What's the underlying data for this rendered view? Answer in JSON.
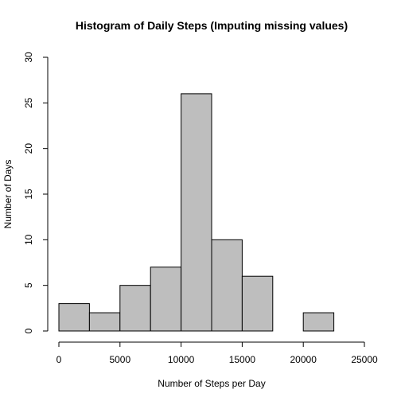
{
  "chart_data": {
    "type": "bar",
    "title": "Histogram of Daily Steps (Imputing missing values)",
    "xlabel": "Number of Steps per Day",
    "ylabel": "Number of Days",
    "bins": [
      {
        "start": 0,
        "end": 2500,
        "count": 3
      },
      {
        "start": 2500,
        "end": 5000,
        "count": 2
      },
      {
        "start": 5000,
        "end": 7500,
        "count": 5
      },
      {
        "start": 7500,
        "end": 10000,
        "count": 7
      },
      {
        "start": 10000,
        "end": 12500,
        "count": 26
      },
      {
        "start": 12500,
        "end": 15000,
        "count": 10
      },
      {
        "start": 15000,
        "end": 17500,
        "count": 6
      },
      {
        "start": 17500,
        "end": 20000,
        "count": 0
      },
      {
        "start": 20000,
        "end": 22500,
        "count": 2
      },
      {
        "start": 22500,
        "end": 25000,
        "count": 0
      }
    ],
    "xlim": [
      0,
      25000
    ],
    "ylim": [
      0,
      30
    ],
    "x_ticks": [
      "0",
      "5000",
      "10000",
      "15000",
      "20000",
      "25000"
    ],
    "y_ticks": [
      "0",
      "5",
      "10",
      "15",
      "20",
      "25",
      "30"
    ],
    "bar_color": "#bebebe",
    "edge_color": "#000000",
    "grid": false,
    "legend": "none"
  }
}
